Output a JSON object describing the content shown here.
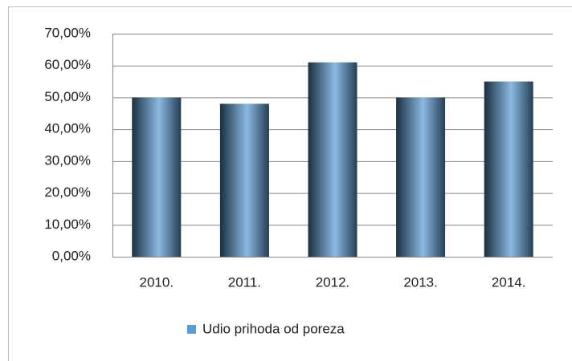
{
  "chart_data": {
    "type": "bar",
    "categories": [
      "2010.",
      "2011.",
      "2012.",
      "2013.",
      "2014."
    ],
    "values": [
      50,
      48,
      61,
      50,
      55
    ],
    "series_name": "Udio prihoda od poreza",
    "color": "#5b9bd5",
    "ylim": [
      0,
      70
    ],
    "yticks": [
      {
        "value": 0,
        "label": "0,00%"
      },
      {
        "value": 10,
        "label": "10,00%"
      },
      {
        "value": 20,
        "label": "20,00%"
      },
      {
        "value": 30,
        "label": "30,00%"
      },
      {
        "value": 40,
        "label": "40,00%"
      },
      {
        "value": 50,
        "label": "50,00%"
      },
      {
        "value": 60,
        "label": "60,00%"
      },
      {
        "value": 70,
        "label": "70,00%"
      }
    ],
    "grid": true,
    "legend": "bottom"
  }
}
